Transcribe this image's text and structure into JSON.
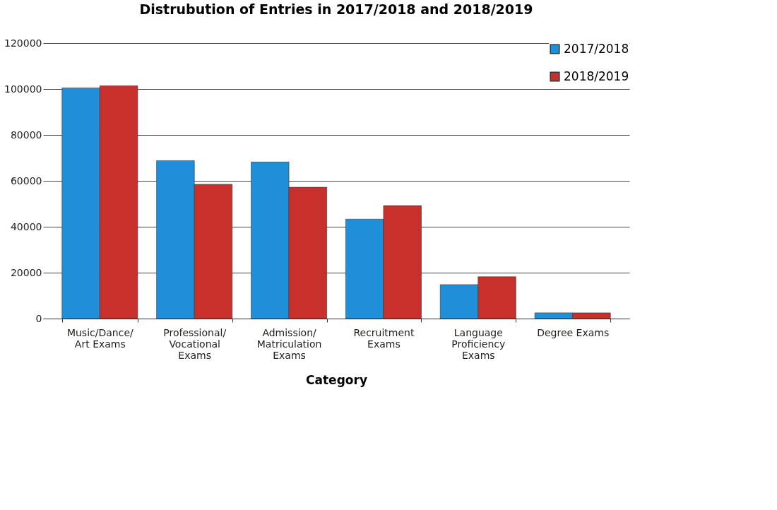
{
  "chart_data": {
    "type": "bar",
    "title": "Distrubution of Entries in 2017/2018 and 2018/2019",
    "xlabel": "Category",
    "categories": [
      "Music/Dance/ Art Exams",
      "Professional/ Vocational Exams",
      "Admission/ Matriculation Exams",
      "Recruitment Exams",
      "Language Proficiency Exams",
      "Degree Exams"
    ],
    "series": [
      {
        "name": "2017/2018",
        "color": "#1e8fd8",
        "values": [
          100500,
          68800,
          68200,
          43300,
          14800,
          2500
        ]
      },
      {
        "name": "2018/2019",
        "color": "#c9302c",
        "values": [
          101400,
          58500,
          57200,
          49200,
          18200,
          2500
        ]
      }
    ],
    "ylim": [
      0,
      120000
    ],
    "yticks": [
      0,
      20000,
      40000,
      60000,
      80000,
      100000,
      120000
    ],
    "grid": "y",
    "legend": "top right"
  }
}
